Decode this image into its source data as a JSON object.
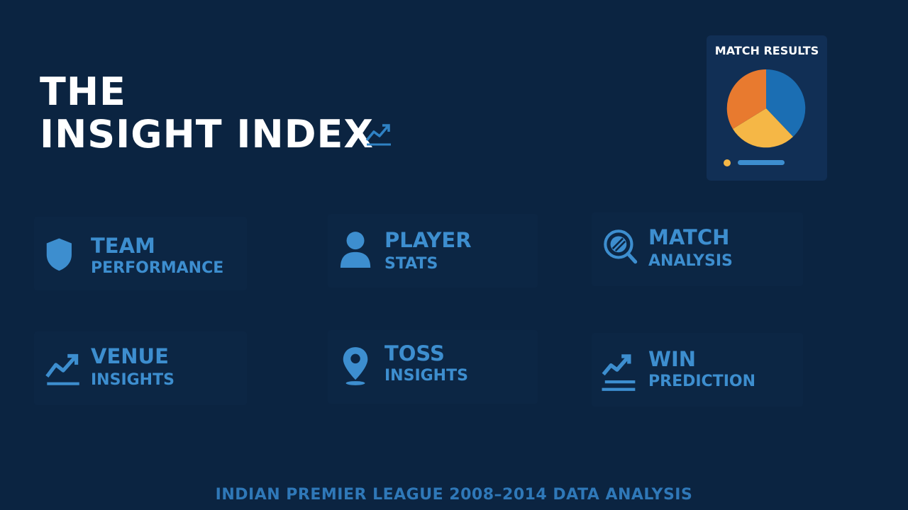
{
  "header": {
    "title_line1": "THE",
    "title_line2": "INSIGHT INDEX",
    "icon": "trend-up-icon"
  },
  "tiles": [
    {
      "line1": "TEAM",
      "line2": "PERFORMANCE",
      "icon": "shield-icon"
    },
    {
      "line1": "PLAYER",
      "line2": "STATS",
      "icon": "user-icon"
    },
    {
      "line1": "MATCH",
      "line2": "ANALYSIS",
      "icon": "magnifier-ball-icon"
    },
    {
      "line1": "VENUE",
      "line2": "INSIGHTS",
      "icon": "trend-up-icon"
    },
    {
      "line1": "TOSS",
      "line2": "INSIGHTS",
      "icon": "location-pin-icon"
    },
    {
      "line1": "WIN",
      "line2": "PREDICTION",
      "icon": "trend-up-icon"
    }
  ],
  "match_results_card": {
    "title": "MATCH RESULTS",
    "icon": "pie-chart-icon",
    "colors": {
      "blue": "#1b6eb3",
      "yellow": "#f5b746",
      "orange": "#e87a2f",
      "legend": "#3d8ecf"
    }
  },
  "footer": {
    "text": "INDIAN PREMIER LEAGUE 2008–2014 DATA ANALYSIS"
  },
  "colors": {
    "background": "#0b2441",
    "accent": "#3d8ecf",
    "title": "#ffffff"
  }
}
